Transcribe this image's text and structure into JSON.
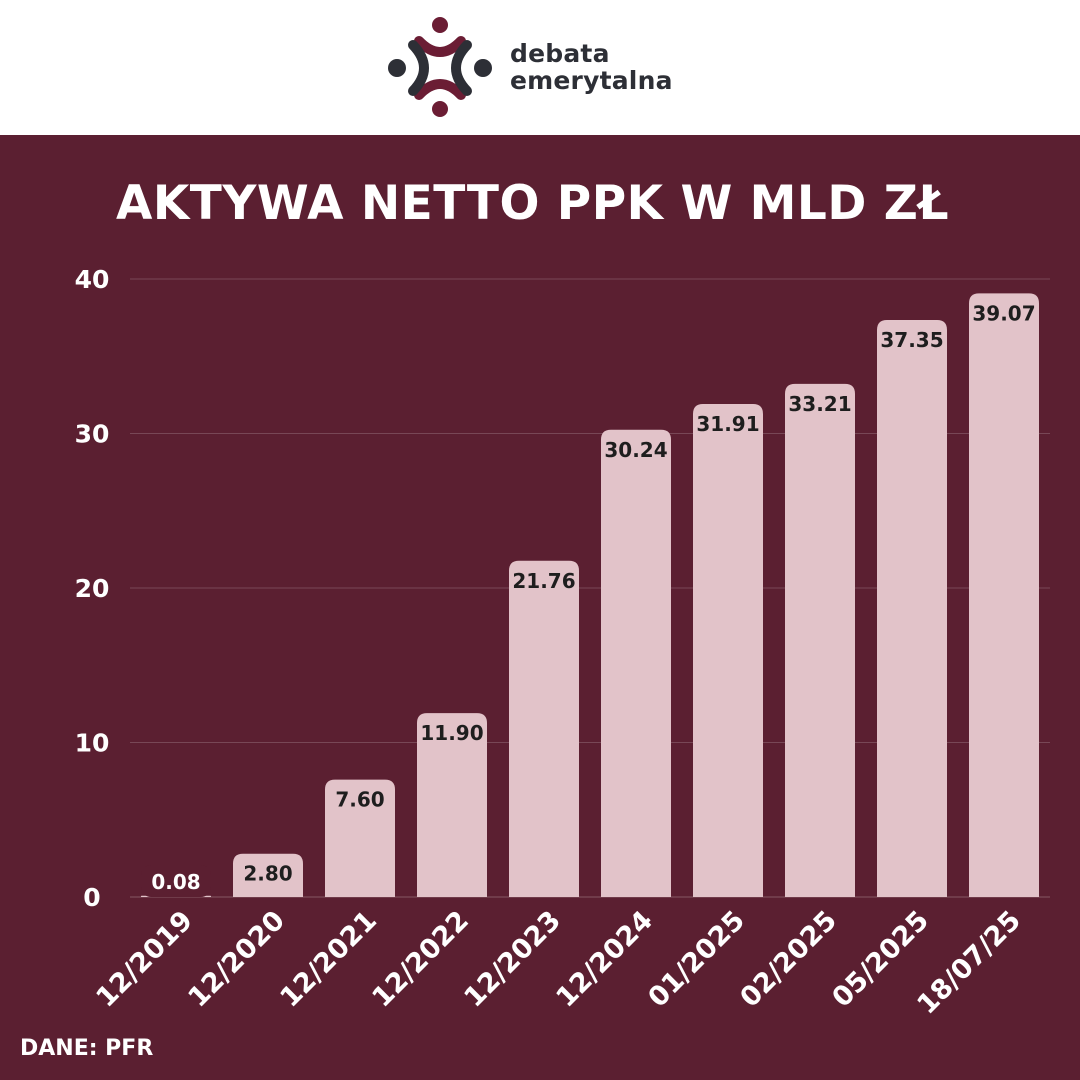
{
  "brand": {
    "name_line1": "debata",
    "name_line2": "emerytalna",
    "logo_color_primary": "#6b1d34",
    "logo_color_secondary": "#2d2f36"
  },
  "source": "DANE: PFR",
  "colors": {
    "background": "#5b1f31",
    "bar": "#e2c3c9",
    "label_text": "#1e1e1e",
    "axis_text": "#ffffff"
  },
  "chart_data": {
    "type": "bar",
    "title": "AKTYWA NETTO PPK W MLD ZŁ",
    "categories": [
      "12/2019",
      "12/2020",
      "12/2021",
      "12/2022",
      "12/2023",
      "12/2024",
      "01/2025",
      "02/2025",
      "05/2025",
      "18/07/25"
    ],
    "values": [
      0.08,
      2.8,
      7.6,
      11.9,
      21.76,
      30.24,
      31.91,
      33.21,
      37.35,
      39.07
    ],
    "value_labels": [
      "0.08",
      "2.80",
      "7.60",
      "11.90",
      "21.76",
      "30.24",
      "31.91",
      "33.21",
      "37.35",
      "39.07"
    ],
    "yticks": [
      0,
      10,
      20,
      30,
      40
    ],
    "ylim": [
      0,
      40
    ],
    "xlabel": "",
    "ylabel": "",
    "grid": true,
    "legend": "none"
  }
}
